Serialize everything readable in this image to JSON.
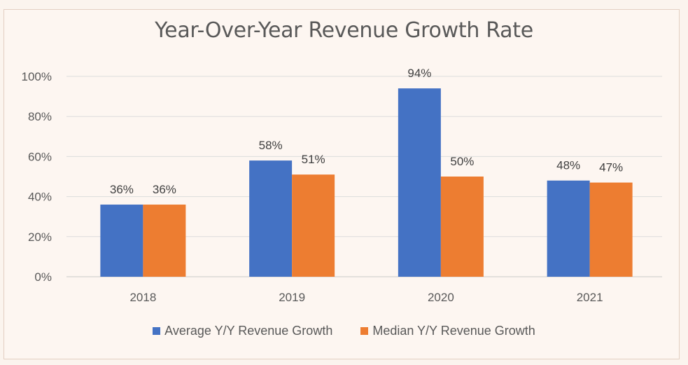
{
  "chart_data": {
    "type": "bar",
    "title": "Year-Over-Year Revenue Growth Rate",
    "categories": [
      "2018",
      "2019",
      "2020",
      "2021"
    ],
    "series": [
      {
        "name": "Average Y/Y Revenue Growth",
        "color": "#4472c4",
        "values": [
          36,
          58,
          94,
          48
        ],
        "labels": [
          "36%",
          "58%",
          "94%",
          "48%"
        ]
      },
      {
        "name": "Median Y/Y Revenue Growth",
        "color": "#ed7d31",
        "values": [
          36,
          51,
          50,
          47
        ],
        "labels": [
          "36%",
          "51%",
          "50%",
          "47%"
        ]
      }
    ],
    "ylim": [
      0,
      100
    ],
    "yticks": [
      0,
      20,
      40,
      60,
      80,
      100
    ],
    "ytick_labels": [
      "0%",
      "20%",
      "40%",
      "60%",
      "80%",
      "100%"
    ],
    "grid": true,
    "legend_position": "bottom"
  }
}
